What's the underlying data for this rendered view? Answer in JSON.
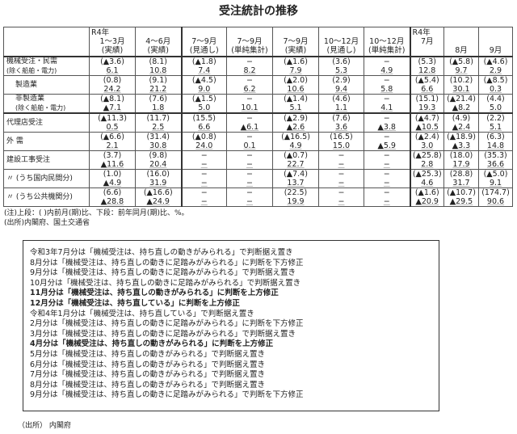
{
  "title": "受注統計の推移",
  "header": {
    "year1": "R4年",
    "year2": "R4年",
    "cols": [
      [
        "1〜3月",
        "(実績)"
      ],
      [
        "4〜6月",
        "(実績)"
      ],
      [
        "7〜9月",
        "(見通し)"
      ],
      [
        "7〜9月",
        "(単純集計)"
      ],
      [
        "7〜9月",
        "(実績)"
      ],
      [
        "10〜12月",
        "(見通し)"
      ],
      [
        "10〜12月",
        "(単純集計)"
      ],
      [
        "7月",
        ""
      ],
      [
        "8月",
        ""
      ],
      [
        "9月",
        ""
      ]
    ]
  },
  "rows": [
    {
      "label": [
        "機械受注・民需",
        "(除く船舶・電力)"
      ],
      "sub": false,
      "cells": [
        [
          "(▲3.6)",
          "6.1"
        ],
        [
          "(8.1)",
          "10.8"
        ],
        [
          "(▲1.8)",
          "7.4"
        ],
        [
          "−",
          "8.2"
        ],
        [
          "(▲1.6)",
          "7.9"
        ],
        [
          "(3.6)",
          "5.3"
        ],
        [
          "−",
          "4.9"
        ],
        [
          "(5.3)",
          "12.8"
        ],
        [
          "(▲5.8)",
          "9.7"
        ],
        [
          "(▲4.6)",
          "2.9"
        ]
      ]
    },
    {
      "label": [
        "製造業",
        ""
      ],
      "sub": true,
      "cells": [
        [
          "(0.8)",
          "24.2"
        ],
        [
          "(9.1)",
          "21.2"
        ],
        [
          "(▲4.5)",
          "9.0"
        ],
        [
          "−",
          "6.2"
        ],
        [
          "(▲2.0)",
          "10.6"
        ],
        [
          "(2.9)",
          "9.4"
        ],
        [
          "−",
          "5.8"
        ],
        [
          "(▲5.4)",
          "6.6"
        ],
        [
          "(10.2)",
          "30.1"
        ],
        [
          "(▲8.5)",
          "0.3"
        ]
      ]
    },
    {
      "label": [
        "非製造業",
        "(除く船舶・電力)"
      ],
      "sub": true,
      "cells": [
        [
          "(▲8.1)",
          "▲7.1"
        ],
        [
          "(7.6)",
          "1.8"
        ],
        [
          "(▲1.5)",
          "5.0"
        ],
        [
          "−",
          "10.1"
        ],
        [
          "(▲1.4)",
          "5.1"
        ],
        [
          "(4.6)",
          "1.1"
        ],
        [
          "−",
          "4.1"
        ],
        [
          "(15.1)",
          "19.3"
        ],
        [
          "(▲21.4)",
          "▲8.2"
        ],
        [
          "(4.4)",
          "5.0"
        ]
      ]
    },
    {
      "label": [
        "代理店受注",
        ""
      ],
      "sub": false,
      "cells": [
        [
          "(▲11.3)",
          "0.5"
        ],
        [
          "(11.7)",
          "2.5"
        ],
        [
          "(15.5)",
          "6.6"
        ],
        [
          "−",
          "▲6.1"
        ],
        [
          "(▲2.9)",
          "▲2.6"
        ],
        [
          "(7.6)",
          "3.6"
        ],
        [
          "−",
          "▲3.8"
        ],
        [
          "(▲4.7)",
          "▲10.5"
        ],
        [
          "(4.9)",
          "▲2.4"
        ],
        [
          "(2.2)",
          "5.1"
        ]
      ]
    },
    {
      "label": [
        "外 需",
        ""
      ],
      "sub": false,
      "cells": [
        [
          "(▲6.6)",
          "2.1"
        ],
        [
          "(31.4)",
          "30.8"
        ],
        [
          "(▲0.8)",
          "24.0"
        ],
        [
          "−",
          "0.1"
        ],
        [
          "(▲16.5)",
          "4.9"
        ],
        [
          "(16.5)",
          "15.0"
        ],
        [
          "−",
          "▲5.9"
        ],
        [
          "(▲2.4)",
          "3.0"
        ],
        [
          "(▲18.9)",
          "▲3.3"
        ],
        [
          "(6.3)",
          "14.8"
        ]
      ]
    },
    {
      "label": [
        "建設工事受注",
        ""
      ],
      "sub": false,
      "cells": [
        [
          "(3.7)",
          "▲11.6"
        ],
        [
          "(9.8)",
          "20.4"
        ],
        [
          "−",
          "−"
        ],
        [
          "−",
          "−"
        ],
        [
          "(▲0.7)",
          "22.7"
        ],
        [
          "−",
          "−"
        ],
        [
          "−",
          "−"
        ],
        [
          "(▲25.8)",
          "2.8"
        ],
        [
          "(18.0)",
          "17.9"
        ],
        [
          "(35.3)",
          "36.6"
        ]
      ]
    },
    {
      "label": [
        "〃 (うち国内民間分)",
        ""
      ],
      "sub": false,
      "cells": [
        [
          "(1.0)",
          "▲4.9"
        ],
        [
          "(16.0)",
          "31.9"
        ],
        [
          "−",
          "−"
        ],
        [
          "−",
          "−"
        ],
        [
          "(▲7.4)",
          "13.7"
        ],
        [
          "−",
          "−"
        ],
        [
          "−",
          "−"
        ],
        [
          "(▲25.3)",
          "4.6"
        ],
        [
          "(28.8)",
          "31.7"
        ],
        [
          "(▲5.0)",
          "9.1"
        ]
      ]
    },
    {
      "label": [
        "〃 (うち公共機関分)",
        ""
      ],
      "sub": false,
      "cells": [
        [
          "(6.6)",
          "▲28.8"
        ],
        [
          "(▲16.6)",
          "▲24.9"
        ],
        [
          "−",
          "−"
        ],
        [
          "−",
          "−"
        ],
        [
          "(22.5)",
          "19.9"
        ],
        [
          "−",
          "−"
        ],
        [
          "−",
          "−"
        ],
        [
          "(▲1.6)",
          "▲20.9"
        ],
        [
          "(▲10.7)",
          "▲29.5"
        ],
        [
          "(174.7)",
          "90.6"
        ]
      ]
    }
  ],
  "note": "(注)上段：( )内前月(期)比、下段：前年同月(期)比、%。",
  "source1": "(出所)内閣府、国土交通省",
  "box_lines": [
    {
      "t": "令和3年7月分は「機械受注は、持ち直しの動きがみられる」で判断据え置き",
      "b": false
    },
    {
      "t": "8月分は「機械受注は、持ち直しの動きに足踏みがみられる」に判断を下方修正",
      "b": false
    },
    {
      "t": "9月分は「機械受注は、持ち直しの動きに足踏みがみられる」で判断据え置き",
      "b": false
    },
    {
      "t": "10月分は「機械受注は、持ち直しの動きに足踏みがみられる」で判断据え置き",
      "b": false
    },
    {
      "t": "11月分は「機械受注は、持ち直しの動きがみられる」に判断を上方修正",
      "b": true
    },
    {
      "t": "12月分は「機械受注は、持ち直している」に判断を上方修正",
      "b": true
    },
    {
      "t": "令和4年1月分は「機械受注は、持ち直している」で判断据え置き",
      "b": false
    },
    {
      "t": "2月分は「機械受注は、持ち直しの動きに足踏みがみられる」に判断を下方修正",
      "b": false
    },
    {
      "t": "3月分は「機械受注は、持ち直しの動きに足踏みがみられる」で判断据え置き",
      "b": false
    },
    {
      "t": "4月分は「機械受注は、持ち直しの動きがみられる」に判断を上方修正",
      "b": true
    },
    {
      "t": "5月分は「機械受注は、持ち直しの動きがみられる」で判断据え置き",
      "b": false
    },
    {
      "t": "6月分は「機械受注は、持ち直しの動きがみられる」で判断据え置き",
      "b": false
    },
    {
      "t": "7月分は「機械受注は、持ち直しの動きがみられる」で判断据え置き",
      "b": false
    },
    {
      "t": "8月分は「機械受注は、持ち直しの動きがみられる」で判断据え置き",
      "b": false
    },
    {
      "t": "9月分は「機械受注は、持ち直しの動きに足踏みがみられる」で判断を下方修正",
      "b": false
    }
  ],
  "source2": "（出所） 内閣府"
}
